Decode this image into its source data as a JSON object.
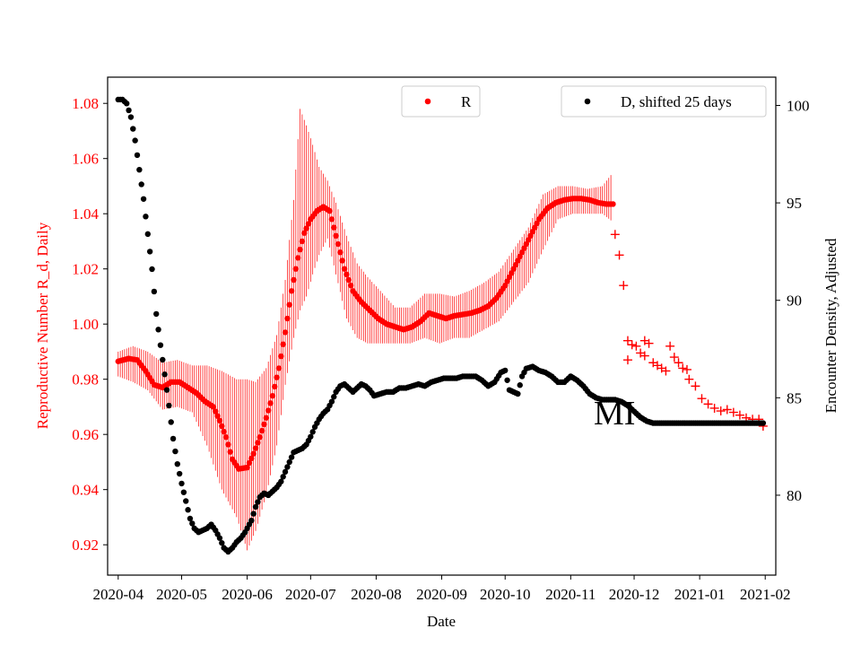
{
  "chart_data": {
    "type": "scatter",
    "xlabel": "Date",
    "ylabel_left": "Reproductive Number R_d, Daily",
    "ylabel_right": "Encounter Density, Adjusted",
    "annotation": "MI",
    "x_ticks": [
      "2020-04",
      "2020-05",
      "2020-06",
      "2020-07",
      "2020-08",
      "2020-09",
      "2020-10",
      "2020-11",
      "2020-12",
      "2021-01",
      "2021-02"
    ],
    "x_range": [
      "2020-03-27",
      "2021-02-06"
    ],
    "y_left_ticks": [
      0.92,
      0.94,
      0.96,
      0.98,
      1.0,
      1.02,
      1.04,
      1.06,
      1.08
    ],
    "y_left_range": [
      0.909,
      1.0895
    ],
    "y_right_ticks": [
      80,
      85,
      90,
      95,
      100
    ],
    "y_right_range": [
      75.9,
      101.45
    ],
    "legend_left": {
      "placement": "upper center",
      "label": "R"
    },
    "legend_right": {
      "placement": "upper right",
      "label": "D, shifted 25 days"
    },
    "colors": {
      "R": "#ff0000",
      "D": "#000000",
      "axes": "#000000"
    },
    "series": [
      {
        "name": "R",
        "axis": "left",
        "marker": "dot",
        "points": [
          [
            "2020-04-01",
            0.9865
          ],
          [
            "2020-04-06",
            0.9875
          ],
          [
            "2020-04-10",
            0.987
          ],
          [
            "2020-04-14",
            0.983
          ],
          [
            "2020-04-18",
            0.978
          ],
          [
            "2020-04-22",
            0.977
          ],
          [
            "2020-04-26",
            0.979
          ],
          [
            "2020-04-30",
            0.979
          ],
          [
            "2020-05-04",
            0.977
          ],
          [
            "2020-05-08",
            0.975
          ],
          [
            "2020-05-12",
            0.972
          ],
          [
            "2020-05-16",
            0.97
          ],
          [
            "2020-05-19",
            0.965
          ],
          [
            "2020-05-22",
            0.959
          ],
          [
            "2020-05-25",
            0.951
          ],
          [
            "2020-05-28",
            0.9475
          ],
          [
            "2020-06-01",
            0.948
          ],
          [
            "2020-06-04",
            0.953
          ],
          [
            "2020-06-07",
            0.959
          ],
          [
            "2020-06-10",
            0.966
          ],
          [
            "2020-06-13",
            0.974
          ],
          [
            "2020-06-16",
            0.984
          ],
          [
            "2020-06-19",
            0.997
          ],
          [
            "2020-06-22",
            1.012
          ],
          [
            "2020-06-25",
            1.024
          ],
          [
            "2020-06-28",
            1.033
          ],
          [
            "2020-07-01",
            1.038
          ],
          [
            "2020-07-04",
            1.041
          ],
          [
            "2020-07-07",
            1.0425
          ],
          [
            "2020-07-10",
            1.041
          ],
          [
            "2020-07-13",
            1.032
          ],
          [
            "2020-07-17",
            1.02
          ],
          [
            "2020-07-21",
            1.012
          ],
          [
            "2020-07-25",
            1.008
          ],
          [
            "2020-07-29",
            1.005
          ],
          [
            "2020-08-02",
            1.002
          ],
          [
            "2020-08-06",
            1.0
          ],
          [
            "2020-08-10",
            0.999
          ],
          [
            "2020-08-14",
            0.998
          ],
          [
            "2020-08-18",
            0.999
          ],
          [
            "2020-08-22",
            1.001
          ],
          [
            "2020-08-26",
            1.004
          ],
          [
            "2020-08-30",
            1.003
          ],
          [
            "2020-09-03",
            1.002
          ],
          [
            "2020-09-07",
            1.003
          ],
          [
            "2020-09-11",
            1.0035
          ],
          [
            "2020-09-15",
            1.004
          ],
          [
            "2020-09-19",
            1.005
          ],
          [
            "2020-09-23",
            1.0065
          ],
          [
            "2020-09-27",
            1.0095
          ],
          [
            "2020-10-01",
            1.014
          ],
          [
            "2020-10-05",
            1.02
          ],
          [
            "2020-10-09",
            1.026
          ],
          [
            "2020-10-13",
            1.032
          ],
          [
            "2020-10-17",
            1.038
          ],
          [
            "2020-10-21",
            1.042
          ],
          [
            "2020-10-25",
            1.044
          ],
          [
            "2020-10-29",
            1.045
          ],
          [
            "2020-11-02",
            1.0455
          ],
          [
            "2020-11-06",
            1.0455
          ],
          [
            "2020-11-10",
            1.045
          ],
          [
            "2020-11-14",
            1.044
          ],
          [
            "2020-11-18",
            1.0435
          ],
          [
            "2020-11-21",
            1.0435
          ]
        ]
      },
      {
        "name": "R",
        "axis": "left",
        "marker": "plus",
        "points": [
          [
            "2020-11-22",
            1.0325
          ],
          [
            "2020-11-24",
            1.025
          ],
          [
            "2020-11-26",
            1.014
          ],
          [
            "2020-11-28",
            0.994
          ],
          [
            "2020-11-30",
            0.9925
          ],
          [
            "2020-12-02",
            0.992
          ],
          [
            "2020-12-04",
            0.9895
          ],
          [
            "2020-12-06",
            0.9885
          ],
          [
            "2020-12-08",
            0.993
          ],
          [
            "2020-12-10",
            0.986
          ],
          [
            "2020-12-12",
            0.985
          ],
          [
            "2020-12-14",
            0.984
          ],
          [
            "2020-12-16",
            0.983
          ],
          [
            "2020-12-18",
            0.992
          ],
          [
            "2020-12-20",
            0.988
          ],
          [
            "2020-12-22",
            0.986
          ],
          [
            "2020-12-24",
            0.984
          ],
          [
            "2020-12-27",
            0.98
          ],
          [
            "2020-12-30",
            0.9775
          ],
          [
            "2021-01-02",
            0.973
          ],
          [
            "2021-01-05",
            0.971
          ],
          [
            "2021-01-08",
            0.9695
          ],
          [
            "2021-01-11",
            0.9685
          ],
          [
            "2021-01-14",
            0.969
          ],
          [
            "2021-01-17",
            0.968
          ],
          [
            "2021-01-20",
            0.967
          ],
          [
            "2021-01-23",
            0.966
          ],
          [
            "2021-01-26",
            0.9655
          ],
          [
            "2021-01-29",
            0.9655
          ],
          [
            "2021-01-31",
            0.963
          ],
          [
            "2020-11-28",
            0.987
          ],
          [
            "2020-12-06",
            0.994
          ],
          [
            "2020-12-26",
            0.9835
          ]
        ]
      },
      {
        "name": "D, shifted 25 days",
        "axis": "right",
        "marker": "dot",
        "points": [
          [
            "2020-04-01",
            100.3
          ],
          [
            "2020-04-03",
            100.3
          ],
          [
            "2020-04-05",
            100.1
          ],
          [
            "2020-04-07",
            99.4
          ],
          [
            "2020-04-09",
            98.2
          ],
          [
            "2020-04-11",
            96.7
          ],
          [
            "2020-04-13",
            95.2
          ],
          [
            "2020-04-15",
            93.4
          ],
          [
            "2020-04-17",
            91.6
          ],
          [
            "2020-04-19",
            89.3
          ],
          [
            "2020-04-21",
            87.7
          ],
          [
            "2020-04-23",
            86.2
          ],
          [
            "2020-04-25",
            84.6
          ],
          [
            "2020-04-27",
            82.9
          ],
          [
            "2020-04-29",
            81.6
          ],
          [
            "2020-05-01",
            80.6
          ],
          [
            "2020-05-03",
            79.7
          ],
          [
            "2020-05-05",
            78.8
          ],
          [
            "2020-05-07",
            78.3
          ],
          [
            "2020-05-09",
            78.1
          ],
          [
            "2020-05-11",
            78.2
          ],
          [
            "2020-05-13",
            78.3
          ],
          [
            "2020-05-15",
            78.5
          ],
          [
            "2020-05-17",
            78.2
          ],
          [
            "2020-05-19",
            77.8
          ],
          [
            "2020-05-21",
            77.3
          ],
          [
            "2020-05-23",
            77.1
          ],
          [
            "2020-05-25",
            77.3
          ],
          [
            "2020-05-27",
            77.6
          ],
          [
            "2020-05-29",
            77.8
          ],
          [
            "2020-05-31",
            78.1
          ],
          [
            "2020-06-03",
            78.7
          ],
          [
            "2020-06-05",
            79.4
          ],
          [
            "2020-06-07",
            79.9
          ],
          [
            "2020-06-09",
            80.1
          ],
          [
            "2020-06-11",
            80.0
          ],
          [
            "2020-06-13",
            80.2
          ],
          [
            "2020-06-15",
            80.4
          ],
          [
            "2020-06-17",
            80.7
          ],
          [
            "2020-06-19",
            81.2
          ],
          [
            "2020-06-21",
            81.7
          ],
          [
            "2020-06-23",
            82.2
          ],
          [
            "2020-06-25",
            82.3
          ],
          [
            "2020-06-27",
            82.4
          ],
          [
            "2020-06-29",
            82.6
          ],
          [
            "2020-07-01",
            83.0
          ],
          [
            "2020-07-03",
            83.5
          ],
          [
            "2020-07-05",
            83.9
          ],
          [
            "2020-07-07",
            84.2
          ],
          [
            "2020-07-09",
            84.4
          ],
          [
            "2020-07-11",
            84.8
          ],
          [
            "2020-07-13",
            85.3
          ],
          [
            "2020-07-15",
            85.6
          ],
          [
            "2020-07-17",
            85.7
          ],
          [
            "2020-07-19",
            85.5
          ],
          [
            "2020-07-21",
            85.3
          ],
          [
            "2020-07-23",
            85.5
          ],
          [
            "2020-07-25",
            85.7
          ],
          [
            "2020-07-27",
            85.6
          ],
          [
            "2020-07-29",
            85.4
          ],
          [
            "2020-07-31",
            85.1
          ],
          [
            "2020-08-03",
            85.2
          ],
          [
            "2020-08-06",
            85.3
          ],
          [
            "2020-08-09",
            85.3
          ],
          [
            "2020-08-12",
            85.5
          ],
          [
            "2020-08-15",
            85.5
          ],
          [
            "2020-08-18",
            85.6
          ],
          [
            "2020-08-21",
            85.7
          ],
          [
            "2020-08-24",
            85.6
          ],
          [
            "2020-08-27",
            85.8
          ],
          [
            "2020-08-30",
            85.9
          ],
          [
            "2020-09-02",
            86.0
          ],
          [
            "2020-09-05",
            86.0
          ],
          [
            "2020-09-08",
            86.0
          ],
          [
            "2020-09-11",
            86.1
          ],
          [
            "2020-09-14",
            86.1
          ],
          [
            "2020-09-17",
            86.1
          ],
          [
            "2020-09-20",
            85.9
          ],
          [
            "2020-09-23",
            85.6
          ],
          [
            "2020-09-26",
            85.8
          ],
          [
            "2020-09-29",
            86.3
          ],
          [
            "2020-10-01",
            86.4
          ],
          [
            "2020-10-03",
            85.4
          ],
          [
            "2020-10-05",
            85.3
          ],
          [
            "2020-10-07",
            85.2
          ],
          [
            "2020-10-09",
            86.1
          ],
          [
            "2020-10-11",
            86.5
          ],
          [
            "2020-10-14",
            86.6
          ],
          [
            "2020-10-17",
            86.4
          ],
          [
            "2020-10-20",
            86.3
          ],
          [
            "2020-10-23",
            86.1
          ],
          [
            "2020-10-26",
            85.8
          ],
          [
            "2020-10-29",
            85.8
          ],
          [
            "2020-11-01",
            86.1
          ],
          [
            "2020-11-04",
            85.9
          ],
          [
            "2020-11-07",
            85.6
          ],
          [
            "2020-11-10",
            85.2
          ],
          [
            "2020-11-13",
            85.0
          ],
          [
            "2020-11-16",
            84.9
          ],
          [
            "2020-11-19",
            84.9
          ],
          [
            "2020-11-22",
            84.9
          ],
          [
            "2020-11-25",
            84.8
          ],
          [
            "2020-11-28",
            84.6
          ],
          [
            "2020-12-01",
            84.3
          ],
          [
            "2020-12-04",
            84.0
          ],
          [
            "2020-12-07",
            83.8
          ],
          [
            "2020-12-10",
            83.7
          ],
          [
            "2020-12-14",
            83.7
          ],
          [
            "2020-12-18",
            83.7
          ],
          [
            "2020-12-22",
            83.7
          ],
          [
            "2020-12-26",
            83.7
          ],
          [
            "2020-12-30",
            83.7
          ],
          [
            "2021-01-03",
            83.7
          ],
          [
            "2021-01-07",
            83.7
          ],
          [
            "2021-01-11",
            83.7
          ],
          [
            "2021-01-15",
            83.7
          ],
          [
            "2021-01-19",
            83.7
          ],
          [
            "2021-01-23",
            83.7
          ],
          [
            "2021-01-27",
            83.7
          ],
          [
            "2021-01-31",
            83.7
          ]
        ]
      }
    ],
    "error_bars": {
      "series": "R",
      "color": "#ff0000",
      "points": [
        [
          "2020-04-01",
          0.981,
          0.99
        ],
        [
          "2020-04-08",
          0.979,
          0.992
        ],
        [
          "2020-04-15",
          0.976,
          0.99
        ],
        [
          "2020-04-22",
          0.969,
          0.986
        ],
        [
          "2020-04-29",
          0.97,
          0.987
        ],
        [
          "2020-05-06",
          0.968,
          0.985
        ],
        [
          "2020-05-13",
          0.956,
          0.985
        ],
        [
          "2020-05-20",
          0.94,
          0.983
        ],
        [
          "2020-05-27",
          0.93,
          0.98
        ],
        [
          "2020-06-01",
          0.918,
          0.98
        ],
        [
          "2020-06-05",
          0.925,
          0.979
        ],
        [
          "2020-06-10",
          0.938,
          0.984
        ],
        [
          "2020-06-15",
          0.956,
          0.996
        ],
        [
          "2020-06-19",
          0.978,
          1.016
        ],
        [
          "2020-06-23",
          0.995,
          1.045
        ],
        [
          "2020-06-26",
          1.005,
          1.078
        ],
        [
          "2020-06-29",
          1.01,
          1.072
        ],
        [
          "2020-07-02",
          1.018,
          1.065
        ],
        [
          "2020-07-05",
          1.025,
          1.057
        ],
        [
          "2020-07-09",
          1.031,
          1.052
        ],
        [
          "2020-07-13",
          1.018,
          1.044
        ],
        [
          "2020-07-18",
          1.002,
          1.032
        ],
        [
          "2020-07-23",
          0.995,
          1.022
        ],
        [
          "2020-07-28",
          0.993,
          1.017
        ],
        [
          "2020-08-03",
          0.993,
          1.012
        ],
        [
          "2020-08-10",
          0.993,
          1.006
        ],
        [
          "2020-08-17",
          0.993,
          1.006
        ],
        [
          "2020-08-24",
          0.995,
          1.011
        ],
        [
          "2020-08-31",
          0.993,
          1.011
        ],
        [
          "2020-09-07",
          0.995,
          1.01
        ],
        [
          "2020-09-14",
          0.995,
          1.012
        ],
        [
          "2020-09-21",
          0.998,
          1.015
        ],
        [
          "2020-09-28",
          1.001,
          1.019
        ],
        [
          "2020-10-05",
          1.008,
          1.027
        ],
        [
          "2020-10-12",
          1.015,
          1.035
        ],
        [
          "2020-10-19",
          1.027,
          1.047
        ],
        [
          "2020-10-26",
          1.038,
          1.05
        ],
        [
          "2020-11-02",
          1.04,
          1.05
        ],
        [
          "2020-11-09",
          1.04,
          1.049
        ],
        [
          "2020-11-16",
          1.04,
          1.05
        ],
        [
          "2020-11-21",
          1.037,
          1.055
        ]
      ]
    }
  }
}
